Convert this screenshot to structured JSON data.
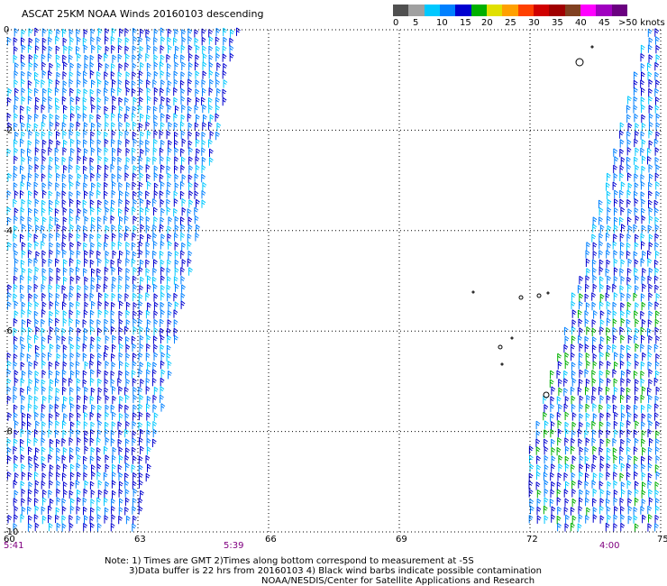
{
  "header": {
    "title": "ASCAT 25KM NOAA Winds 20160103 descending"
  },
  "legend": {
    "colors": [
      "#505050",
      "#a0a0a0",
      "#00c8ff",
      "#0080ff",
      "#0000d0",
      "#00b000",
      "#e0e000",
      "#ffa000",
      "#ff4000",
      "#d00000",
      "#a00000",
      "#804020",
      "#ff00ff",
      "#a000c0",
      "#6a0080"
    ],
    "labels": [
      "0",
      "5",
      "10",
      "15",
      "20",
      "25",
      "30",
      "35",
      "40",
      "45",
      ">50 knots"
    ]
  },
  "chart_data": {
    "type": "scatter",
    "title": "ASCAT 25KM NOAA Winds 20160103 descending",
    "xlabel": "",
    "ylabel": "",
    "xlim": [
      60,
      75
    ],
    "ylim": [
      -10,
      0
    ],
    "x_ticks": [
      "60",
      "63",
      "66",
      "69",
      "72",
      "75"
    ],
    "y_ticks": [
      "0",
      "-2",
      "-4",
      "-6",
      "-8",
      "-10"
    ],
    "grid": true,
    "marker": "wind barbs",
    "series": [
      {
        "region_lon": [
          60,
          65.3
        ],
        "region_lat": [
          -10,
          0
        ],
        "speed_knots_range": [
          5,
          25
        ],
        "dominant_color": "#0000d0",
        "time": "5:41"
      },
      {
        "region_lon": [
          72,
          75
        ],
        "region_lat": [
          -10,
          0
        ],
        "speed_knots_range": [
          5,
          25
        ],
        "dominant_color": "#0000d0",
        "time": "4:00"
      }
    ],
    "bottom_times": [
      "5:41",
      "5:39",
      "4:00"
    ]
  },
  "notes": {
    "line1": "Note: 1) Times are GMT 2)Times along bottom correspond to measurement at -5S",
    "line2": "3)Data buffer is 22 hrs from 20160103 4) Black wind barbs indicate possible contamination",
    "line3": "NOAA/NESDIS/Center for Satellite Applications and Research"
  }
}
